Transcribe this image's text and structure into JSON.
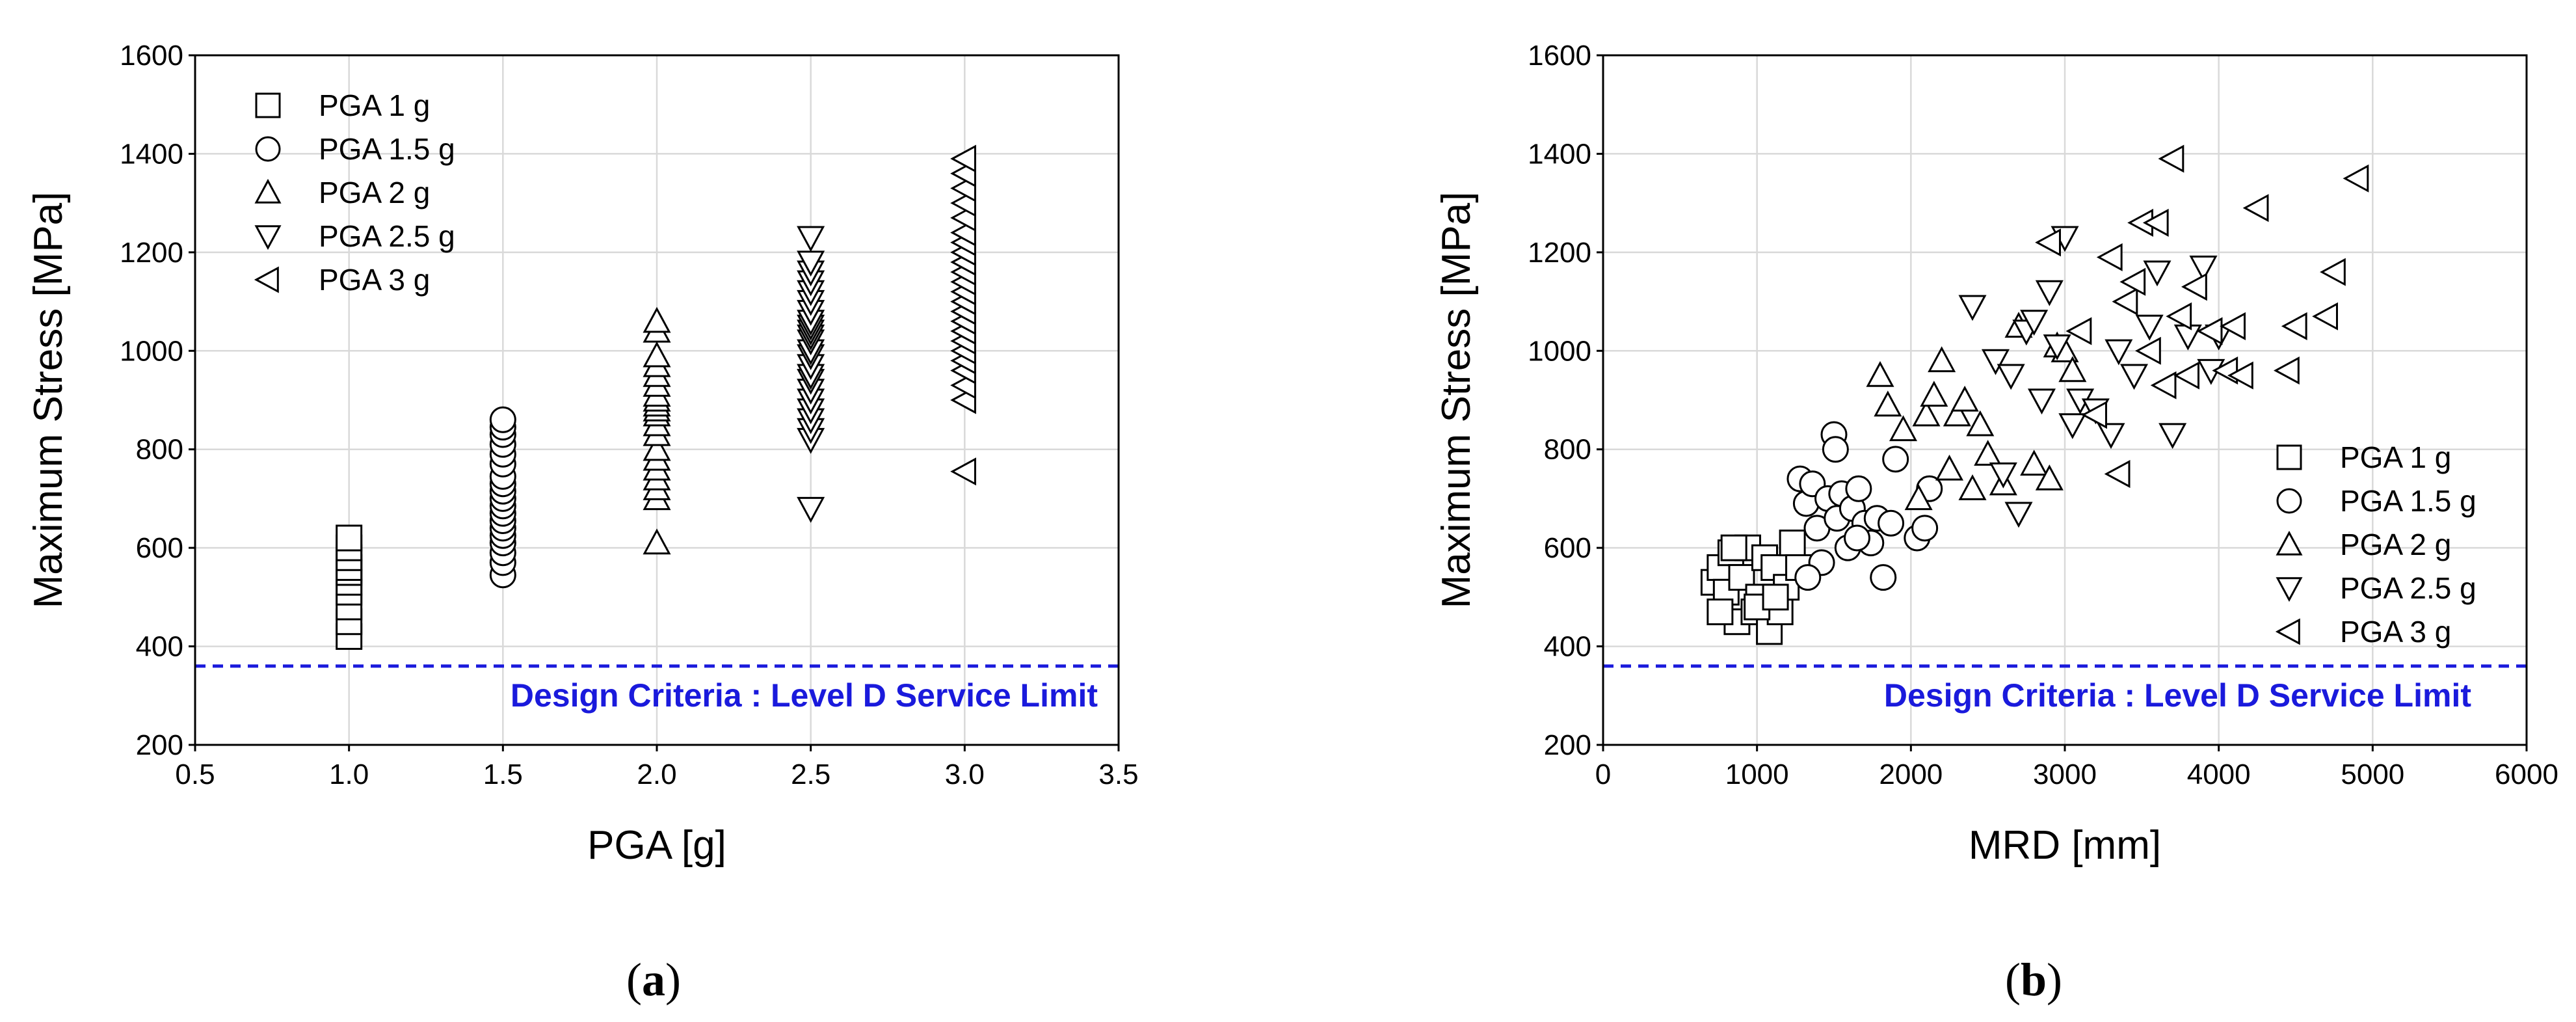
{
  "colors": {
    "design_limit": "#1a1adc",
    "markers": "#000000",
    "grid": "#d9d9d9"
  },
  "chart_data": [
    {
      "panel": "(a)",
      "panel_letter": "a",
      "type": "scatter",
      "xlabel": "PGA [g]",
      "ylabel": "Maximum Stress [MPa]",
      "xlim": [
        0.5,
        3.5
      ],
      "ylim": [
        200,
        1600
      ],
      "xticks": [
        0.5,
        1.0,
        1.5,
        2.0,
        2.5,
        3.0,
        3.5
      ],
      "xtick_labels": [
        "0.5",
        "1.0",
        "1.5",
        "2.0",
        "2.5",
        "3.0",
        "3.5"
      ],
      "yticks": [
        200,
        400,
        600,
        800,
        1000,
        1200,
        1400,
        1600
      ],
      "ytick_labels": [
        "200",
        "400",
        "600",
        "800",
        "1000",
        "1200",
        "1400",
        "1600"
      ],
      "grid": true,
      "legend": {
        "placement": "top-left"
      },
      "reference_line": {
        "y": 360,
        "style": "dashed",
        "label": "Design Criteria : Level D Service Limit"
      },
      "series": [
        {
          "name": "PGA 1 g",
          "marker": "square",
          "x": [
            1,
            1,
            1,
            1,
            1,
            1,
            1,
            1,
            1,
            1
          ],
          "y": [
            420,
            450,
            480,
            510,
            530,
            550,
            560,
            580,
            600,
            620
          ]
        },
        {
          "name": "PGA 1.5 g",
          "marker": "circle",
          "x": [
            1.5,
            1.5,
            1.5,
            1.5,
            1.5,
            1.5,
            1.5,
            1.5,
            1.5,
            1.5,
            1.5,
            1.5,
            1.5,
            1.5,
            1.5,
            1.5,
            1.5,
            1.5,
            1.5
          ],
          "y": [
            545,
            570,
            590,
            610,
            625,
            640,
            655,
            670,
            685,
            700,
            715,
            730,
            745,
            770,
            790,
            810,
            830,
            845,
            860
          ]
        },
        {
          "name": "PGA 2 g",
          "marker": "triangle-up",
          "x": [
            2,
            2,
            2,
            2,
            2,
            2,
            2,
            2,
            2,
            2,
            2,
            2,
            2,
            2,
            2,
            2,
            2,
            2,
            2,
            2
          ],
          "y": [
            610,
            700,
            720,
            740,
            760,
            780,
            800,
            830,
            850,
            870,
            880,
            890,
            900,
            910,
            930,
            950,
            970,
            990,
            1040,
            1060
          ]
        },
        {
          "name": "PGA 2.5 g",
          "marker": "triangle-down",
          "x": [
            2.5,
            2.5,
            2.5,
            2.5,
            2.5,
            2.5,
            2.5,
            2.5,
            2.5,
            2.5,
            2.5,
            2.5,
            2.5,
            2.5,
            2.5,
            2.5,
            2.5,
            2.5,
            2.5,
            2.5,
            2.5,
            2.5,
            2.5,
            2.5
          ],
          "y": [
            680,
            820,
            840,
            860,
            880,
            900,
            920,
            940,
            950,
            970,
            990,
            1000,
            1020,
            1030,
            1040,
            1050,
            1060,
            1080,
            1100,
            1120,
            1140,
            1160,
            1180,
            1230
          ]
        },
        {
          "name": "PGA 3 g",
          "marker": "triangle-left",
          "x": [
            3,
            3,
            3,
            3,
            3,
            3,
            3,
            3,
            3,
            3,
            3,
            3,
            3,
            3,
            3,
            3,
            3,
            3,
            3,
            3,
            3,
            3,
            3
          ],
          "y": [
            755,
            900,
            930,
            960,
            980,
            1000,
            1020,
            1040,
            1060,
            1080,
            1100,
            1120,
            1140,
            1160,
            1180,
            1200,
            1220,
            1240,
            1270,
            1300,
            1330,
            1360,
            1390
          ]
        }
      ]
    },
    {
      "panel": "(b)",
      "panel_letter": "b",
      "type": "scatter",
      "xlabel": "MRD [mm]",
      "ylabel": "Maximum Stress [MPa]",
      "xlim": [
        0,
        6000
      ],
      "ylim": [
        200,
        1600
      ],
      "xticks": [
        0,
        1000,
        2000,
        3000,
        4000,
        5000,
        6000
      ],
      "xtick_labels": [
        "0",
        "1000",
        "2000",
        "3000",
        "4000",
        "5000",
        "6000"
      ],
      "yticks": [
        200,
        400,
        600,
        800,
        1000,
        1200,
        1400,
        1600
      ],
      "ytick_labels": [
        "200",
        "400",
        "600",
        "800",
        "1000",
        "1200",
        "1400",
        "1600"
      ],
      "grid": true,
      "legend": {
        "placement": "bottom-right"
      },
      "reference_line": {
        "y": 360,
        "style": "dashed",
        "label": "Design Criteria : Level D Service Limit"
      },
      "series": [
        {
          "name": "PGA 1 g",
          "marker": "square",
          "x": [
            720,
            760,
            800,
            830,
            870,
            900,
            940,
            980,
            1010,
            1050,
            1080,
            1110,
            1150,
            1190,
            1230,
            1270,
            760,
            850,
            1000,
            1120
          ],
          "y": [
            530,
            560,
            510,
            590,
            450,
            540,
            600,
            470,
            500,
            580,
            430,
            560,
            470,
            520,
            610,
            560,
            470,
            600,
            480,
            500
          ]
        },
        {
          "name": "PGA 1.5 g",
          "marker": "circle",
          "x": [
            1280,
            1320,
            1360,
            1390,
            1420,
            1460,
            1500,
            1520,
            1550,
            1590,
            1620,
            1660,
            1700,
            1740,
            1780,
            1820,
            1870,
            1900,
            2040,
            2090,
            2120,
            1510,
            1650,
            1330
          ],
          "y": [
            740,
            690,
            730,
            640,
            570,
            700,
            830,
            660,
            710,
            600,
            680,
            720,
            650,
            610,
            660,
            540,
            650,
            780,
            620,
            640,
            720,
            800,
            620,
            540
          ]
        },
        {
          "name": "PGA 2 g",
          "marker": "triangle-up",
          "x": [
            1800,
            1850,
            1950,
            2050,
            2100,
            2150,
            2200,
            2250,
            2300,
            2350,
            2400,
            2450,
            2500,
            2600,
            2700,
            2800,
            2900,
            2950,
            3000,
            3050
          ],
          "y": [
            950,
            890,
            840,
            700,
            870,
            910,
            980,
            760,
            870,
            900,
            720,
            850,
            790,
            730,
            1050,
            770,
            740,
            1010,
            1000,
            960
          ]
        },
        {
          "name": "PGA 2.5 g",
          "marker": "triangle-down",
          "x": [
            2400,
            2550,
            2600,
            2650,
            2700,
            2750,
            2800,
            2850,
            2900,
            2950,
            3000,
            3050,
            3100,
            3200,
            3300,
            3350,
            3450,
            3550,
            3600,
            3700,
            3800,
            3900,
            3950,
            4000
          ],
          "y": [
            1090,
            980,
            750,
            950,
            670,
            1040,
            1060,
            900,
            1120,
            1010,
            1230,
            850,
            900,
            880,
            830,
            1000,
            950,
            1050,
            1160,
            830,
            1030,
            1170,
            960,
            1030
          ]
        },
        {
          "name": "PGA 3 g",
          "marker": "triangle-left",
          "x": [
            2900,
            3100,
            3200,
            3300,
            3350,
            3400,
            3450,
            3500,
            3550,
            3600,
            3650,
            3700,
            3750,
            3800,
            3850,
            3950,
            4050,
            4100,
            4150,
            4250,
            4450,
            4500,
            4700,
            4750,
            4900
          ],
          "y": [
            1220,
            1040,
            870,
            1190,
            750,
            1100,
            1140,
            1260,
            1000,
            1260,
            930,
            1390,
            1070,
            950,
            1130,
            1040,
            960,
            1050,
            950,
            1290,
            960,
            1050,
            1070,
            1160,
            1350
          ]
        }
      ]
    }
  ]
}
